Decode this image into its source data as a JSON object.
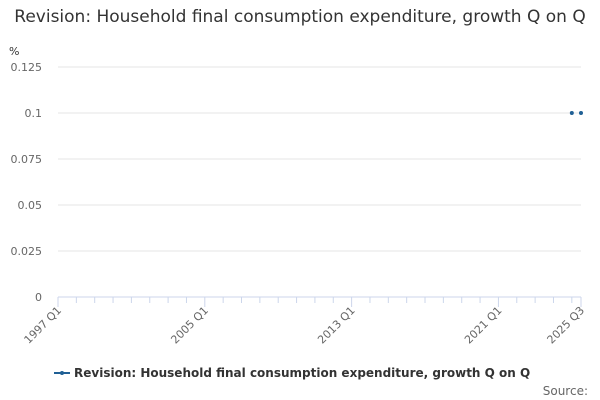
{
  "title": "Revision: Household final consumption expenditure, growth Q on Q",
  "source_label": "Source:",
  "colors": {
    "series": "#206095",
    "grid": "#e6e6e6",
    "axis": "#ccd6eb",
    "text": "#666666"
  },
  "chart_data": {
    "type": "line",
    "title": "Revision: Household final consumption expenditure, growth Q on Q",
    "ylabel": "%",
    "xlabel": "",
    "ylim": [
      0,
      0.125
    ],
    "yticks": [
      0,
      0.025,
      0.05,
      0.075,
      0.1,
      0.125
    ],
    "ytick_labels": [
      "0",
      "0.025",
      "0.05",
      "0.075",
      "0.1",
      "0.125"
    ],
    "xrange": [
      "1997 Q1",
      "2025 Q3"
    ],
    "xtick_labels": [
      "1997 Q1",
      "2005 Q1",
      "2013 Q1",
      "2021 Q1",
      "2025 Q3"
    ],
    "grid": true,
    "legend_position": "bottom",
    "series": [
      {
        "name": "Revision: Household final consumption expenditure, growth Q on Q",
        "color": "#206095",
        "points": [
          {
            "x": "2025 Q1",
            "y": 0.1
          },
          {
            "x": "2025 Q3",
            "y": 0.1
          }
        ]
      }
    ]
  }
}
